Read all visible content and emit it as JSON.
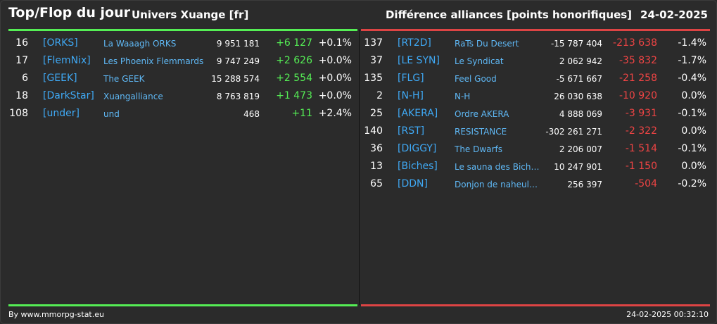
{
  "header": {
    "title": "Top/Flop du jour",
    "universe": "Univers Xuange [fr]",
    "stat_type": "Différence alliances [points honorifiques]",
    "date": "24-02-2025"
  },
  "colors": {
    "top_accent": "#55ee55",
    "flop_accent": "#dd4444",
    "tag_color": "#3fa9f5",
    "background": "#2b2b2b"
  },
  "top": [
    {
      "rank": "16",
      "tag": "[ORKS]",
      "name": "La Waaagh ORKS",
      "points": "9 951 181",
      "diff": "+6 127",
      "pct": "+0.1%"
    },
    {
      "rank": "17",
      "tag": "[FlemNix]",
      "name": "Les Phoenix Flemmards",
      "points": "9 747 249",
      "diff": "+2 626",
      "pct": "+0.0%"
    },
    {
      "rank": "6",
      "tag": "[GEEK]",
      "name": "The GEEK",
      "points": "15 288 574",
      "diff": "+2 554",
      "pct": "+0.0%"
    },
    {
      "rank": "18",
      "tag": "[DarkStar]",
      "name": "Xuangalliance",
      "points": "8 763 819",
      "diff": "+1 473",
      "pct": "+0.0%"
    },
    {
      "rank": "108",
      "tag": "[under]",
      "name": "und",
      "points": "468",
      "diff": "+11",
      "pct": "+2.4%"
    }
  ],
  "flop": [
    {
      "rank": "137",
      "tag": "[RT2D]",
      "name": "RaTs Du Desert",
      "points": "-15 787 404",
      "diff": "-213 638",
      "pct": "-1.4%"
    },
    {
      "rank": "37",
      "tag": "[LE SYN]",
      "name": "Le Syndicat",
      "points": "2 062 942",
      "diff": "-35 832",
      "pct": "-1.7%"
    },
    {
      "rank": "135",
      "tag": "[FLG]",
      "name": "Feel Good",
      "points": "-5 671 667",
      "diff": "-21 258",
      "pct": "-0.4%"
    },
    {
      "rank": "2",
      "tag": "[N-H]",
      "name": "N-H",
      "points": "26 030 638",
      "diff": "-10 920",
      "pct": "0.0%"
    },
    {
      "rank": "25",
      "tag": "[AKERA]",
      "name": "Ordre AKERA",
      "points": "4 888 069",
      "diff": "-3 931",
      "pct": "-0.1%"
    },
    {
      "rank": "140",
      "tag": "[RST]",
      "name": "RESISTANCE",
      "points": "-302 261 271",
      "diff": "-2 322",
      "pct": "0.0%"
    },
    {
      "rank": "36",
      "tag": "[DIGGY]",
      "name": "The Dwarfs",
      "points": "2 206 007",
      "diff": "-1 514",
      "pct": "-0.1%"
    },
    {
      "rank": "13",
      "tag": "[Biches]",
      "name": "Le sauna des Biche...",
      "points": "10 247 901",
      "diff": "-1 150",
      "pct": "0.0%"
    },
    {
      "rank": "65",
      "tag": "[DDN]",
      "name": "Donjon de naheulb...",
      "points": "256 397",
      "diff": "-504",
      "pct": "-0.2%"
    }
  ],
  "footer": {
    "credit": "By www.mmorpg-stat.eu",
    "timestamp": "24-02-2025 00:32:10"
  }
}
